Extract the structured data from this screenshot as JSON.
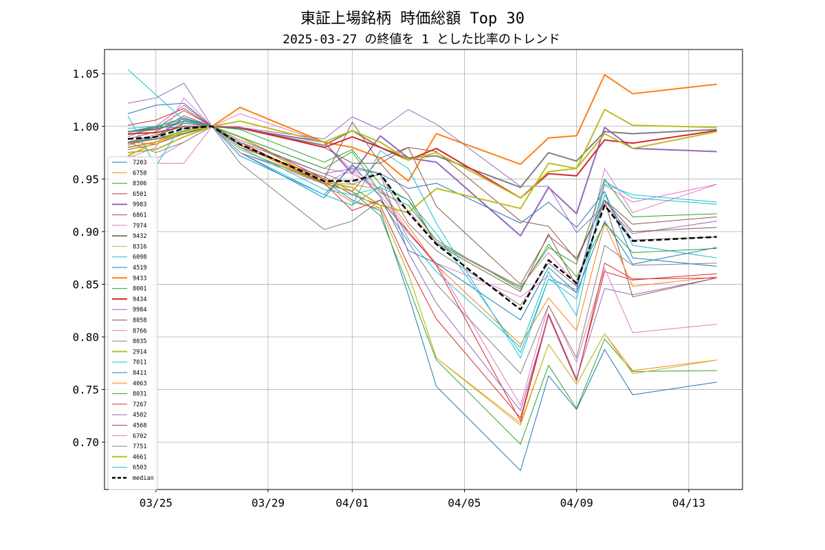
{
  "chart_data": {
    "type": "line",
    "title": "東証上場銘柄 時価総額 Top 30",
    "subtitle": "2025-03-27 の終値を 1 とした比率のトレンド",
    "xlabel": "",
    "ylabel": "",
    "x": [
      "2025-03-24",
      "2025-03-25",
      "2025-03-26",
      "2025-03-27",
      "2025-03-28",
      "2025-03-31",
      "2025-04-01",
      "2025-04-02",
      "2025-04-03",
      "2025-04-04",
      "2025-04-07",
      "2025-04-08",
      "2025-04-09",
      "2025-04-10",
      "2025-04-11",
      "2025-04-14"
    ],
    "x_ticks": [
      {
        "date": "2025-03-25",
        "label": "03/25"
      },
      {
        "date": "2025-03-29",
        "label": "03/29"
      },
      {
        "date": "2025-04-01",
        "label": "04/01"
      },
      {
        "date": "2025-04-05",
        "label": "04/05"
      },
      {
        "date": "2025-04-09",
        "label": "04/09"
      },
      {
        "date": "2025-04-13",
        "label": "04/13"
      }
    ],
    "xlim": [
      "2025-03-23T04:00",
      "2025-04-14T22:00"
    ],
    "ylim": [
      0.655,
      1.073
    ],
    "y_ticks": [
      0.7,
      0.75,
      0.8,
      0.85,
      0.9,
      0.95,
      1.0,
      1.05
    ],
    "y_tick_labels": [
      "0.70",
      "0.75",
      "0.80",
      "0.85",
      "0.90",
      "0.95",
      "1.00",
      "1.05"
    ],
    "grid": true,
    "legend_position": "left",
    "series": [
      {
        "name": "7203",
        "color": "#1f77b4",
        "width": 1,
        "values": [
          0.995,
          1.0,
          0.998,
          1.0,
          0.975,
          0.948,
          0.93,
          0.92,
          0.84,
          0.753,
          0.673,
          0.763,
          0.731,
          0.788,
          0.745,
          0.757
        ]
      },
      {
        "name": "6758",
        "color": "#ff7f0e",
        "width": 1,
        "values": [
          0.985,
          0.99,
          0.993,
          1.0,
          0.982,
          0.945,
          0.928,
          0.922,
          0.86,
          0.78,
          0.718,
          0.793,
          0.755,
          0.803,
          0.768,
          0.778
        ]
      },
      {
        "name": "8306",
        "color": "#2ca02c",
        "width": 1,
        "values": [
          0.984,
          0.988,
          0.996,
          1.0,
          0.978,
          0.946,
          0.938,
          0.915,
          0.848,
          0.778,
          0.698,
          0.773,
          0.732,
          0.798,
          0.767,
          0.768
        ]
      },
      {
        "name": "6501",
        "color": "#d62728",
        "width": 1,
        "values": [
          0.988,
          0.995,
          1.01,
          1.0,
          0.99,
          0.95,
          0.935,
          0.925,
          0.868,
          0.817,
          0.723,
          0.822,
          0.76,
          0.862,
          0.854,
          0.86
        ]
      },
      {
        "name": "9983",
        "color": "#9467bd",
        "width": 2,
        "values": [
          0.995,
          0.997,
          1.005,
          1.0,
          0.998,
          0.985,
          0.955,
          0.991,
          0.97,
          0.966,
          0.896,
          0.942,
          0.917,
          0.999,
          0.979,
          0.976
        ]
      },
      {
        "name": "6861",
        "color": "#8c564b",
        "width": 1,
        "values": [
          0.992,
          0.998,
          1.015,
          1.0,
          0.998,
          0.98,
          0.965,
          0.965,
          0.935,
          0.888,
          0.843,
          0.898,
          0.848,
          0.93,
          0.838,
          0.856
        ]
      },
      {
        "name": "7974",
        "color": "#e377c2",
        "width": 1,
        "values": [
          0.965,
          0.965,
          0.965,
          1.0,
          0.99,
          0.96,
          0.955,
          0.94,
          0.9,
          0.87,
          0.838,
          0.858,
          0.842,
          0.96,
          0.918,
          0.945
        ]
      },
      {
        "name": "9432",
        "color": "#7f7f7f",
        "width": 2,
        "values": [
          0.984,
          0.988,
          0.993,
          1.0,
          0.998,
          0.982,
          0.996,
          0.98,
          0.97,
          0.972,
          0.942,
          0.975,
          0.967,
          0.995,
          0.993,
          0.997
        ]
      },
      {
        "name": "8316",
        "color": "#bcbd22",
        "width": 1,
        "values": [
          0.985,
          0.99,
          0.993,
          1.0,
          0.978,
          0.945,
          0.938,
          0.922,
          0.86,
          0.78,
          0.716,
          0.793,
          0.755,
          0.803,
          0.765,
          0.778
        ]
      },
      {
        "name": "6098",
        "color": "#17becf",
        "width": 1,
        "values": [
          0.998,
          1.0,
          1.008,
          1.0,
          0.975,
          0.935,
          0.925,
          0.943,
          0.893,
          0.862,
          0.79,
          0.862,
          0.82,
          0.945,
          0.935,
          0.928
        ]
      },
      {
        "name": "4519",
        "color": "#1f77b4",
        "width": 1,
        "values": [
          1.012,
          1.02,
          1.022,
          1.0,
          0.972,
          0.935,
          0.962,
          0.955,
          0.941,
          0.946,
          0.908,
          0.928,
          0.904,
          0.938,
          0.875,
          0.867
        ]
      },
      {
        "name": "9433",
        "color": "#ff7f0e",
        "width": 2,
        "values": [
          0.98,
          0.985,
          0.995,
          1.0,
          1.018,
          0.985,
          0.98,
          0.97,
          0.948,
          0.993,
          0.964,
          0.989,
          0.991,
          1.049,
          1.031,
          1.04
        ]
      },
      {
        "name": "8001",
        "color": "#2ca02c",
        "width": 1,
        "values": [
          0.995,
          0.998,
          1.003,
          1.0,
          0.997,
          0.966,
          0.978,
          0.945,
          0.93,
          0.889,
          0.847,
          0.885,
          0.869,
          0.95,
          0.914,
          0.917
        ]
      },
      {
        "name": "9434",
        "color": "#d62728",
        "width": 2,
        "values": [
          0.993,
          0.994,
          1.0,
          1.0,
          0.999,
          0.98,
          0.99,
          0.98,
          0.968,
          0.979,
          0.932,
          0.955,
          0.953,
          0.987,
          0.984,
          0.996
        ]
      },
      {
        "name": "9984",
        "color": "#9467bd",
        "width": 1,
        "values": [
          1.022,
          1.027,
          1.041,
          1.0,
          0.999,
          0.988,
          1.009,
          0.997,
          1.016,
          1.002,
          0.943,
          0.943,
          0.899,
          0.925,
          0.898,
          0.91
        ]
      },
      {
        "name": "8058",
        "color": "#8c564b",
        "width": 1,
        "values": [
          0.978,
          0.983,
          0.993,
          1.0,
          0.98,
          0.952,
          0.938,
          0.97,
          0.98,
          0.976,
          0.91,
          0.905,
          0.873,
          0.93,
          0.907,
          0.914
        ]
      },
      {
        "name": "8766",
        "color": "#e377c2",
        "width": 1,
        "values": [
          0.972,
          0.969,
          0.985,
          1.0,
          1.012,
          0.985,
          0.958,
          0.935,
          0.898,
          0.87,
          0.735,
          0.83,
          0.776,
          0.865,
          0.804,
          0.812
        ]
      },
      {
        "name": "8035",
        "color": "#7f7f7f",
        "width": 1,
        "values": [
          0.985,
          0.975,
          0.985,
          1.0,
          0.965,
          0.902,
          0.91,
          0.93,
          0.89,
          0.85,
          0.765,
          0.83,
          0.78,
          0.887,
          0.868,
          0.87
        ]
      },
      {
        "name": "2914",
        "color": "#bcbd22",
        "width": 2,
        "values": [
          0.975,
          0.978,
          0.99,
          1.0,
          0.99,
          0.947,
          0.942,
          0.925,
          0.918,
          0.941,
          0.922,
          0.965,
          0.96,
          1.016,
          1.001,
          0.999
        ]
      },
      {
        "name": "7011",
        "color": "#17becf",
        "width": 1,
        "values": [
          1.01,
          0.962,
          1.005,
          1.0,
          0.972,
          0.935,
          0.925,
          0.977,
          0.96,
          0.908,
          0.78,
          0.855,
          0.836,
          0.935,
          0.887,
          0.875
        ]
      },
      {
        "name": "8411",
        "color": "#1f77b4",
        "width": 1,
        "values": [
          0.982,
          0.99,
          1.008,
          1.0,
          0.975,
          0.932,
          0.964,
          0.933,
          0.882,
          0.87,
          0.816,
          0.866,
          0.842,
          0.91,
          0.869,
          0.885
        ]
      },
      {
        "name": "4063",
        "color": "#ff7f0e",
        "width": 1,
        "values": [
          0.985,
          0.983,
          0.995,
          1.0,
          0.983,
          0.946,
          0.945,
          0.94,
          0.905,
          0.868,
          0.793,
          0.837,
          0.806,
          0.908,
          0.848,
          0.857
        ]
      },
      {
        "name": "8031",
        "color": "#2ca02c",
        "width": 1,
        "values": [
          0.995,
          0.999,
          1.007,
          1.0,
          0.99,
          0.96,
          0.976,
          0.937,
          0.925,
          0.892,
          0.845,
          0.888,
          0.857,
          0.908,
          0.88,
          0.884
        ]
      },
      {
        "name": "7267",
        "color": "#d62728",
        "width": 1,
        "values": [
          1.001,
          1.006,
          1.017,
          1.0,
          0.985,
          0.946,
          0.92,
          0.93,
          0.9,
          0.868,
          0.72,
          0.82,
          0.758,
          0.87,
          0.855,
          0.856
        ]
      },
      {
        "name": "4502",
        "color": "#9467bd",
        "width": 1,
        "values": [
          0.99,
          1.0,
          1.02,
          1.0,
          0.985,
          0.955,
          0.96,
          0.955,
          0.88,
          0.832,
          0.73,
          0.82,
          0.76,
          0.846,
          0.84,
          0.856
        ]
      },
      {
        "name": "4568",
        "color": "#8c564b",
        "width": 1,
        "values": [
          0.985,
          0.99,
          1.003,
          1.0,
          0.982,
          0.95,
          1.004,
          0.965,
          0.98,
          0.924,
          0.85,
          0.896,
          0.875,
          0.93,
          0.9,
          0.904
        ]
      },
      {
        "name": "6702",
        "color": "#e377c2",
        "width": 1,
        "values": [
          0.97,
          0.98,
          1.027,
          1.0,
          0.975,
          0.945,
          0.96,
          0.94,
          0.92,
          0.89,
          0.848,
          0.88,
          0.85,
          0.944,
          0.928,
          0.945
        ]
      },
      {
        "name": "7751",
        "color": "#7f7f7f",
        "width": 1,
        "values": [
          0.985,
          0.992,
          1.0,
          1.0,
          0.987,
          0.955,
          0.945,
          0.955,
          0.908,
          0.882,
          0.83,
          0.87,
          0.848,
          0.93,
          0.892,
          0.895
        ]
      },
      {
        "name": "4661",
        "color": "#bcbd22",
        "width": 2,
        "values": [
          0.972,
          0.985,
          0.995,
          1.0,
          1.005,
          0.985,
          0.996,
          0.985,
          0.968,
          0.975,
          0.932,
          0.957,
          0.96,
          0.993,
          0.979,
          0.995
        ]
      },
      {
        "name": "6503",
        "color": "#17becf",
        "width": 1,
        "values": [
          1.054,
          1.03,
          1.006,
          1.0,
          0.98,
          0.94,
          0.935,
          0.942,
          0.93,
          0.898,
          0.785,
          0.855,
          0.845,
          0.948,
          0.932,
          0.926
        ]
      }
    ],
    "median": {
      "name": "median",
      "color": "#000000",
      "style": "dashed",
      "width": 2.5,
      "values": [
        0.988,
        0.99,
        0.998,
        1.0,
        0.983,
        0.948,
        0.948,
        0.955,
        0.918,
        0.888,
        0.826,
        0.873,
        0.851,
        0.925,
        0.891,
        0.895
      ]
    }
  }
}
